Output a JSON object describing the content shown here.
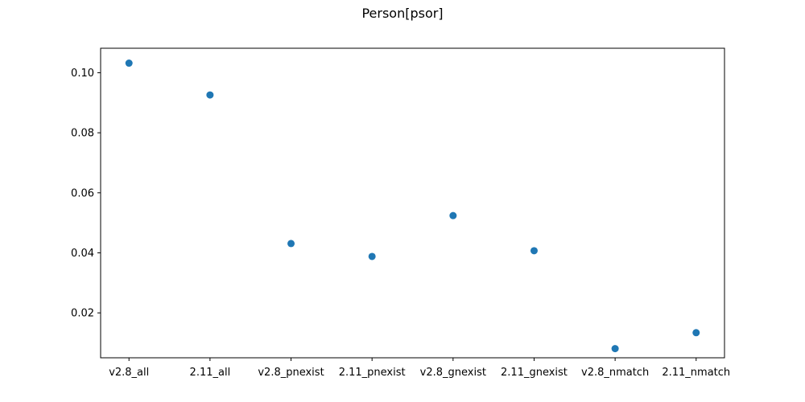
{
  "chart_data": {
    "type": "scatter",
    "title": "Person[psor]",
    "xlabel": "",
    "ylabel": "",
    "categories": [
      "v2.8_all",
      "2.11_all",
      "v2.8_pnexist",
      "2.11_pnexist",
      "v2.8_gnexist",
      "2.11_gnexist",
      "v2.8_nmatch",
      "2.11_nmatch"
    ],
    "values": [
      0.1032,
      0.0926,
      0.0431,
      0.0388,
      0.0524,
      0.0407,
      0.0081,
      0.0134
    ],
    "ylim": [
      0.00504,
      0.10816
    ],
    "yticks": [
      0.02,
      0.04,
      0.06,
      0.08,
      0.1
    ],
    "ytick_labels": [
      "0.02",
      "0.04",
      "0.06",
      "0.08",
      "0.10"
    ],
    "marker_color": "#1f77b4",
    "grid": false,
    "legend": "none"
  }
}
